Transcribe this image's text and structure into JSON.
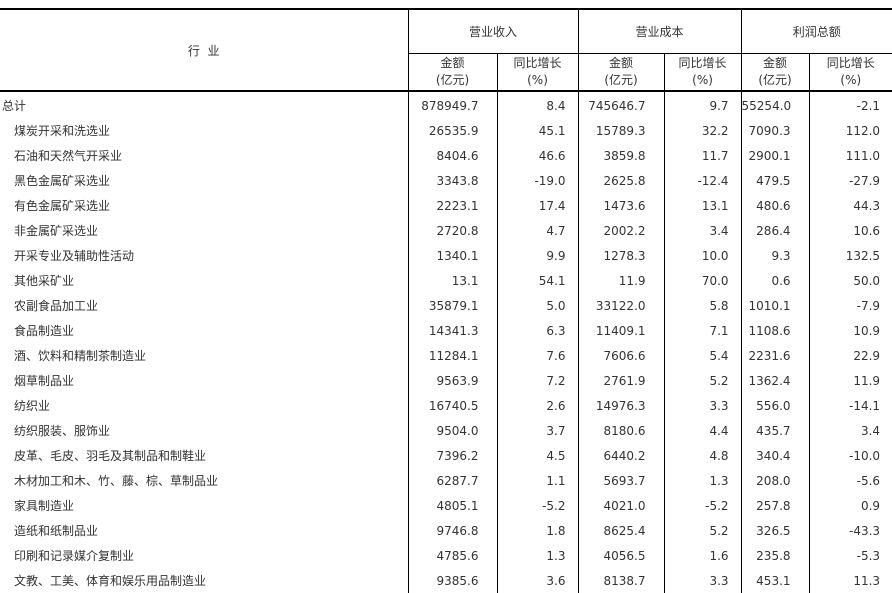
{
  "header": {
    "industry": "行  业",
    "groups": [
      "营业收入",
      "营业成本",
      "利润总额"
    ],
    "amount": "金额",
    "amount_unit": "(亿元)",
    "growth": "同比增长",
    "growth_unit": "(%)"
  },
  "rows": [
    [
      "总计",
      "878949.7",
      "8.4",
      "745646.7",
      "9.7",
      "55254.0",
      "-2.1"
    ],
    [
      "煤炭开采和洗选业",
      "26535.9",
      "45.1",
      "15789.3",
      "32.2",
      "7090.3",
      "112.0"
    ],
    [
      "石油和天然气开采业",
      "8404.6",
      "46.6",
      "3859.8",
      "11.7",
      "2900.1",
      "111.0"
    ],
    [
      "黑色金属矿采选业",
      "3343.8",
      "-19.0",
      "2625.8",
      "-12.4",
      "479.5",
      "-27.9"
    ],
    [
      "有色金属矿采选业",
      "2223.1",
      "17.4",
      "1473.6",
      "13.1",
      "480.6",
      "44.3"
    ],
    [
      "非金属矿采选业",
      "2720.8",
      "4.7",
      "2002.2",
      "3.4",
      "286.4",
      "10.6"
    ],
    [
      "开采专业及辅助性活动",
      "1340.1",
      "9.9",
      "1278.3",
      "10.0",
      "9.3",
      "132.5"
    ],
    [
      "其他采矿业",
      "13.1",
      "54.1",
      "11.9",
      "70.0",
      "0.6",
      "50.0"
    ],
    [
      "农副食品加工业",
      "35879.1",
      "5.0",
      "33122.0",
      "5.8",
      "1010.1",
      "-7.9"
    ],
    [
      "食品制造业",
      "14341.3",
      "6.3",
      "11409.1",
      "7.1",
      "1108.6",
      "10.9"
    ],
    [
      "酒、饮料和精制茶制造业",
      "11284.1",
      "7.6",
      "7606.6",
      "5.4",
      "2231.6",
      "22.9"
    ],
    [
      "烟草制品业",
      "9563.9",
      "7.2",
      "2761.9",
      "5.2",
      "1362.4",
      "11.9"
    ],
    [
      "纺织业",
      "16740.5",
      "2.6",
      "14976.3",
      "3.3",
      "556.0",
      "-14.1"
    ],
    [
      "纺织服装、服饰业",
      "9504.0",
      "3.7",
      "8180.6",
      "4.4",
      "435.7",
      "3.4"
    ],
    [
      "皮革、毛皮、羽毛及其制品和制鞋业",
      "7396.2",
      "4.5",
      "6440.2",
      "4.8",
      "340.4",
      "-10.0"
    ],
    [
      "木材加工和木、竹、藤、棕、草制品业",
      "6287.7",
      "1.1",
      "5693.7",
      "1.3",
      "208.0",
      "-5.6"
    ],
    [
      "家具制造业",
      "4805.1",
      "-5.2",
      "4021.0",
      "-5.2",
      "257.8",
      "0.9"
    ],
    [
      "造纸和纸制品业",
      "9746.8",
      "1.8",
      "8625.4",
      "5.2",
      "326.5",
      "-43.3"
    ],
    [
      "印刷和记录媒介复制业",
      "4785.6",
      "1.3",
      "4056.5",
      "1.6",
      "235.8",
      "-5.3"
    ],
    [
      "文教、工美、体育和娱乐用品制造业",
      "9385.6",
      "3.6",
      "8138.7",
      "3.3",
      "453.1",
      "11.3"
    ]
  ]
}
